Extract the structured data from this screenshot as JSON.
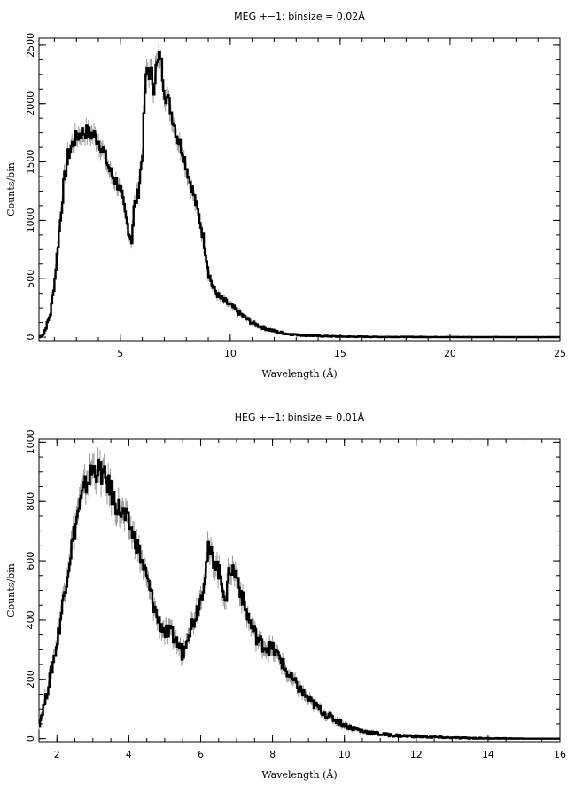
{
  "chart_data": [
    {
      "type": "line",
      "title": "MEG +−1; binsize = 0.02Å",
      "xlabel": "Wavelength (Å)",
      "ylabel": "Counts/bin",
      "xlim": [
        1.3,
        25
      ],
      "ylim": [
        -30,
        2560
      ],
      "xticks": [
        5,
        10,
        15,
        20,
        25
      ],
      "yticks": [
        0,
        500,
        1000,
        1500,
        2000,
        2500
      ],
      "grid": false,
      "series": [
        {
          "x": [
            1.3,
            1.5,
            1.8,
            2.0,
            2.2,
            2.4,
            2.6,
            2.8,
            3.0,
            3.2,
            3.4,
            3.6,
            3.8,
            4.0,
            4.2,
            4.4,
            4.6,
            4.8,
            5.0,
            5.2,
            5.4,
            5.5,
            5.6,
            5.8,
            6.0,
            6.1,
            6.2,
            6.4,
            6.5,
            6.6,
            6.7,
            6.8,
            6.9,
            7.0,
            7.2,
            7.4,
            7.6,
            7.8,
            8.0,
            8.2,
            8.4,
            8.6,
            8.8,
            9.0,
            9.2,
            9.5,
            10.0,
            10.5,
            11.0,
            11.5,
            12.0,
            12.5,
            13.0,
            14.0,
            15.0,
            17.0,
            20.0,
            25.0
          ],
          "y": [
            0,
            30,
            200,
            500,
            900,
            1300,
            1550,
            1650,
            1720,
            1750,
            1760,
            1740,
            1730,
            1680,
            1600,
            1480,
            1380,
            1330,
            1250,
            1050,
            880,
            830,
            1100,
            1250,
            1600,
            2100,
            2290,
            2250,
            2150,
            2300,
            2350,
            2420,
            2250,
            2100,
            2000,
            1850,
            1700,
            1600,
            1450,
            1300,
            1150,
            1000,
            800,
            550,
            420,
            340,
            270,
            190,
            120,
            80,
            50,
            30,
            20,
            10,
            5,
            2,
            1,
            0
          ]
        }
      ]
    },
    {
      "type": "line",
      "title": "HEG +−1; binsize = 0.01Å",
      "xlabel": "Wavelength (Å)",
      "ylabel": "Counts/bin",
      "xlim": [
        1.5,
        16
      ],
      "ylim": [
        -10,
        1010
      ],
      "xticks": [
        2,
        4,
        6,
        8,
        10,
        12,
        14,
        16
      ],
      "yticks": [
        0,
        200,
        400,
        600,
        800,
        1000
      ],
      "grid": false,
      "series": [
        {
          "x": [
            1.5,
            1.7,
            2.0,
            2.2,
            2.4,
            2.6,
            2.8,
            3.0,
            3.2,
            3.4,
            3.6,
            3.8,
            4.0,
            4.2,
            4.4,
            4.6,
            4.8,
            5.0,
            5.2,
            5.4,
            5.5,
            5.6,
            5.8,
            6.0,
            6.2,
            6.4,
            6.6,
            6.7,
            6.8,
            7.0,
            7.2,
            7.4,
            7.6,
            7.8,
            8.0,
            8.2,
            8.4,
            8.6,
            8.8,
            9.0,
            9.2,
            9.5,
            10.0,
            10.5,
            11.0,
            11.5,
            12.0,
            12.5,
            13.0,
            14.0,
            15.0,
            16.0
          ],
          "y": [
            50,
            150,
            330,
            500,
            650,
            780,
            860,
            910,
            900,
            860,
            800,
            760,
            720,
            660,
            580,
            490,
            400,
            360,
            350,
            310,
            280,
            350,
            400,
            480,
            630,
            600,
            520,
            470,
            580,
            550,
            450,
            380,
            330,
            310,
            300,
            270,
            220,
            190,
            160,
            130,
            110,
            80,
            45,
            25,
            15,
            10,
            8,
            5,
            3,
            1,
            0,
            0
          ]
        }
      ]
    }
  ]
}
